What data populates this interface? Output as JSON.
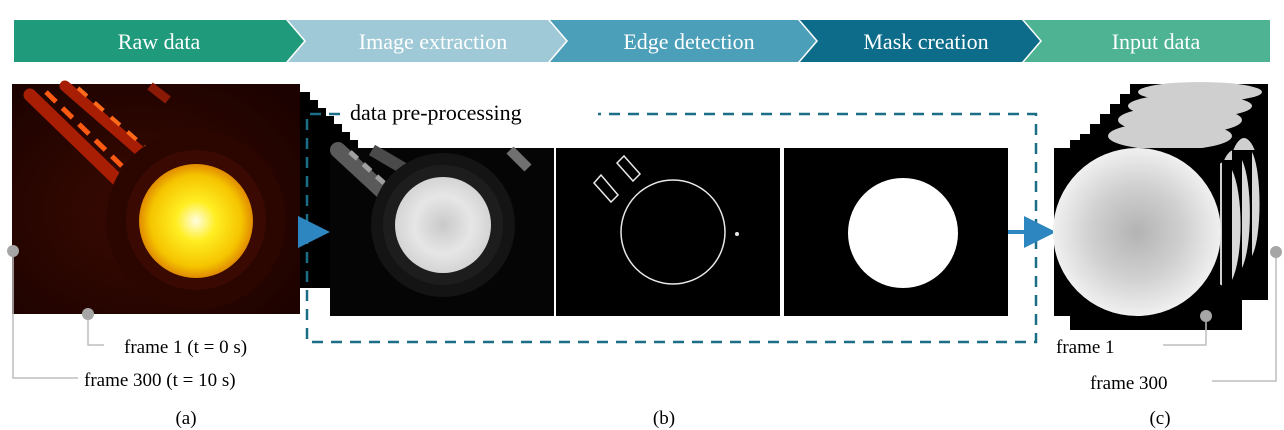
{
  "pipeline": {
    "steps": [
      {
        "label": "Raw data",
        "color": "#1f9a7b"
      },
      {
        "label": "Image extraction",
        "color": "#9fc9d6"
      },
      {
        "label": "Edge detection",
        "color": "#4b9fb9"
      },
      {
        "label": "Mask creation",
        "color": "#0d6c8a"
      },
      {
        "label": "Input data",
        "color": "#4db393"
      }
    ]
  },
  "preprocessing": {
    "label": "data pre-processing",
    "border_color": "#1a6f86"
  },
  "raw": {
    "frame_first_label": "frame 1 (t = 0 s)",
    "frame_last_label": "frame 300 (t = 10 s)",
    "caption": "(a)"
  },
  "processing": {
    "caption": "(b)"
  },
  "input": {
    "frame_first_label": "frame 1",
    "frame_last_label": "frame 300",
    "caption": "(c)"
  },
  "colors": {
    "arrow": "#2e86c1",
    "connector": "#bdbdbd",
    "connector_dot": "#a6a6a6"
  }
}
